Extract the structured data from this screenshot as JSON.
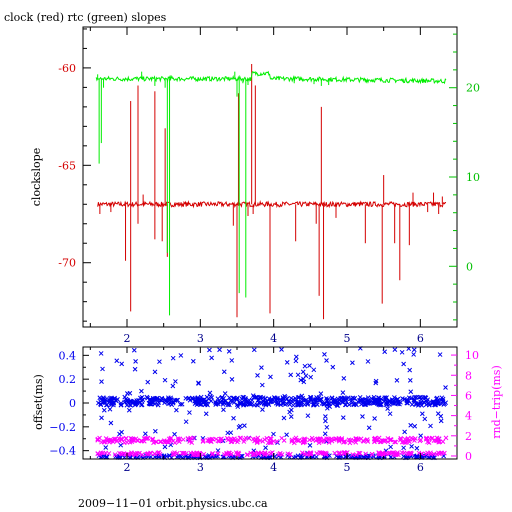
{
  "chart_data": [
    {
      "type": "line",
      "title": "clock (red) rtc (green) slopes",
      "xlabel": "",
      "ylabel": "clockslope",
      "xlim": [
        1.4,
        6.5
      ],
      "ylim": [
        -73.3,
        -57.9
      ],
      "ylim_right": [
        -6.8,
        26.8
      ],
      "x_ticks": [
        "2",
        "3",
        "4",
        "5",
        "6"
      ],
      "y_ticks": [
        "-60",
        "-65",
        "-70"
      ],
      "y_ticks_right": [
        "20",
        "10",
        "0"
      ],
      "grid": false,
      "colors": {
        "clock": "#d40000",
        "rtc": "#00ee00",
        "axis": "#000000"
      },
      "series": [
        {
          "color": "red",
          "axis": "left",
          "baseline": -67.0,
          "x_range": [
            1.6,
            6.35
          ],
          "spikes": [
            {
              "x": 1.63,
              "y": -67.5
            },
            {
              "x": 1.78,
              "y": -67.4
            },
            {
              "x": 1.98,
              "y": -69.9
            },
            {
              "x": 2.05,
              "y": -72.5
            },
            {
              "x": 2.05,
              "y": -61.7
            },
            {
              "x": 2.15,
              "y": -68.0
            },
            {
              "x": 2.15,
              "y": -60.9
            },
            {
              "x": 2.22,
              "y": -66.5
            },
            {
              "x": 2.38,
              "y": -68.8
            },
            {
              "x": 2.38,
              "y": -61.2
            },
            {
              "x": 2.48,
              "y": -68.9
            },
            {
              "x": 2.52,
              "y": -63.1
            },
            {
              "x": 2.55,
              "y": -69.7
            },
            {
              "x": 3.45,
              "y": -68.1
            },
            {
              "x": 3.5,
              "y": -72.8
            },
            {
              "x": 3.52,
              "y": -61.3
            },
            {
              "x": 3.65,
              "y": -67.6
            },
            {
              "x": 3.7,
              "y": -59.8
            },
            {
              "x": 3.72,
              "y": -67.5
            },
            {
              "x": 3.75,
              "y": -60.9
            },
            {
              "x": 3.95,
              "y": -72.6
            },
            {
              "x": 4.3,
              "y": -68.9
            },
            {
              "x": 4.58,
              "y": -68.0
            },
            {
              "x": 4.62,
              "y": -71.7
            },
            {
              "x": 4.65,
              "y": -62.0
            },
            {
              "x": 4.68,
              "y": -72.9
            },
            {
              "x": 4.85,
              "y": -67.7
            },
            {
              "x": 5.25,
              "y": -69.0
            },
            {
              "x": 5.48,
              "y": -72.1
            },
            {
              "x": 5.5,
              "y": -65.5
            },
            {
              "x": 5.65,
              "y": -69.0
            },
            {
              "x": 5.72,
              "y": -70.9
            },
            {
              "x": 5.85,
              "y": -69.1
            },
            {
              "x": 5.9,
              "y": -66.4
            },
            {
              "x": 6.1,
              "y": -67.4
            },
            {
              "x": 6.18,
              "y": -66.4
            },
            {
              "x": 6.25,
              "y": -67.5
            },
            {
              "x": 6.3,
              "y": -66.6
            }
          ]
        },
        {
          "color": "green",
          "axis": "right",
          "baseline": 21.0,
          "x_range": [
            1.58,
            6.35
          ],
          "spikes": [
            {
              "x": 1.6,
              "y": 21.5
            },
            {
              "x": 1.62,
              "y": 11.5
            },
            {
              "x": 1.65,
              "y": 13.8
            },
            {
              "x": 1.68,
              "y": 20.0
            },
            {
              "x": 2.2,
              "y": 21.8
            },
            {
              "x": 2.38,
              "y": 20.2
            },
            {
              "x": 2.52,
              "y": 20.0
            },
            {
              "x": 2.55,
              "y": 1.5
            },
            {
              "x": 2.58,
              "y": -5.5
            },
            {
              "x": 2.6,
              "y": 21.4
            },
            {
              "x": 3.47,
              "y": 21.8
            },
            {
              "x": 3.5,
              "y": 19.0
            },
            {
              "x": 3.53,
              "y": -3.0
            },
            {
              "x": 3.58,
              "y": 20.5
            },
            {
              "x": 3.62,
              "y": -3.5
            },
            {
              "x": 3.65,
              "y": 20.3
            },
            {
              "x": 4.28,
              "y": 20.5
            },
            {
              "x": 4.55,
              "y": 20.4
            },
            {
              "x": 4.65,
              "y": 20.2
            },
            {
              "x": 4.75,
              "y": 20.3
            },
            {
              "x": 5.25,
              "y": 20.6
            }
          ]
        }
      ]
    },
    {
      "type": "scatter",
      "xlabel": "",
      "ylabel": "offset(ms)",
      "ylabel_right": "rnd−trip(ms)",
      "xlim": [
        1.4,
        6.5
      ],
      "ylim": [
        -0.47,
        0.47
      ],
      "ylim_right": [
        -0.3,
        10.8
      ],
      "x_ticks": [
        "2",
        "3",
        "4",
        "5",
        "6"
      ],
      "y_ticks": [
        "0.4",
        "0.2",
        "0",
        "−0.2",
        "−0.4"
      ],
      "y_ticks_right": [
        "10",
        "8",
        "6",
        "4",
        "2",
        "0"
      ],
      "marker": "x",
      "grid": false,
      "colors": {
        "offset": "#0000ee",
        "roundtrip": "#ff00ff"
      },
      "series": [
        {
          "color": "blue",
          "axis": "left",
          "dense_band": [
            -0.02,
            0.05
          ],
          "lower_band": -0.46,
          "x_range": [
            1.6,
            6.35
          ]
        },
        {
          "color": "magenta",
          "axis": "right",
          "dense_band": [
            1.3,
            1.8
          ],
          "lower_band": 0.1,
          "x_range": [
            1.6,
            6.35
          ]
        }
      ]
    }
  ],
  "footer": "2009−11−01  orbit.physics.ubc.ca"
}
